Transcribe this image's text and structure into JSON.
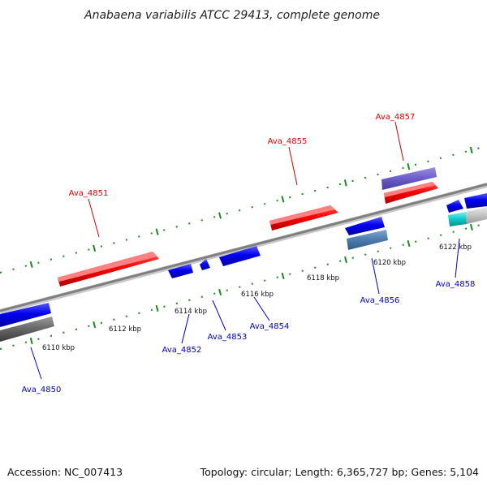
{
  "title": "Anabaena variabilis ATCC 29413, complete genome",
  "footer": {
    "accession": "Accession: NC_007413",
    "summary": "Topology: circular; Length: 6,365,727 bp; Genes: 5,104"
  },
  "colors": {
    "forward_label": "#dd0000",
    "reverse_label": "#0000bb",
    "backbone": "#8c8c8c",
    "tick": "#1a8a1a"
  },
  "ticks": [
    {
      "label": "6110 kbp"
    },
    {
      "label": "6112 kbp"
    },
    {
      "label": "6114 kbp"
    },
    {
      "label": "6116 kbp"
    },
    {
      "label": "6118 kbp"
    },
    {
      "label": "6120 kbp"
    },
    {
      "label": "6122 kbp"
    }
  ],
  "gene_labels": [
    {
      "text": "Ava_4850",
      "strand": "reverse"
    },
    {
      "text": "Ava_4851",
      "strand": "forward"
    },
    {
      "text": "Ava_4852",
      "strand": "reverse"
    },
    {
      "text": "Ava_4853",
      "strand": "reverse"
    },
    {
      "text": "Ava_4854",
      "strand": "reverse"
    },
    {
      "text": "Ava_4855",
      "strand": "forward"
    },
    {
      "text": "Ava_4856",
      "strand": "reverse"
    },
    {
      "text": "Ava_4857",
      "strand": "forward"
    },
    {
      "text": "Ava_4858",
      "strand": "reverse"
    }
  ]
}
